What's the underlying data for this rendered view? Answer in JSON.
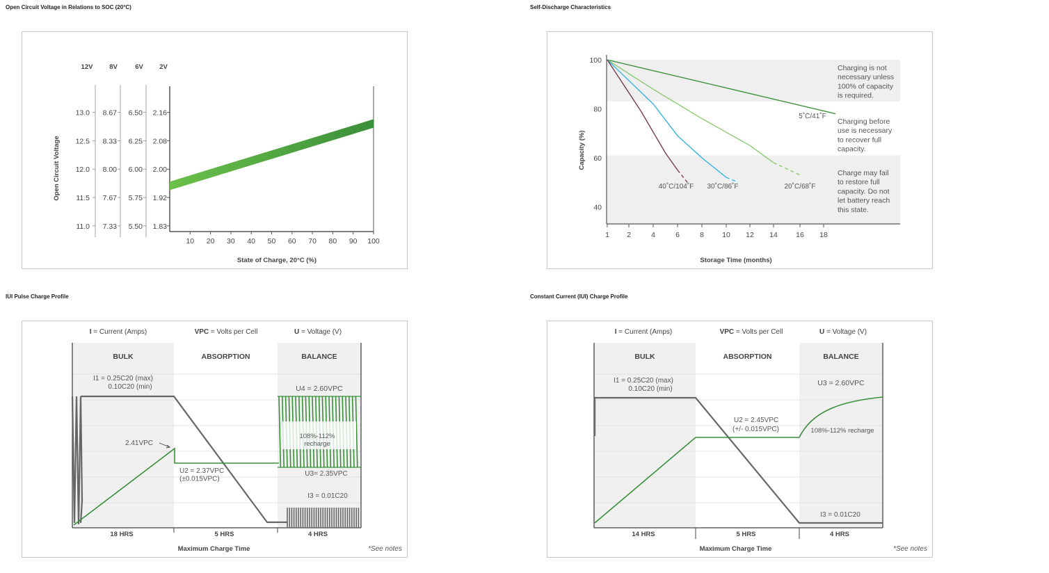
{
  "captions": {
    "ocv": "Open Circuit Voltage in Relations to SOC (20°C)",
    "sd": "Self-Discharge Characteristics",
    "iui": "IUI Pulse Charge Profile",
    "cc": "Constant Current (IUI) Charge Profile"
  },
  "colors": {
    "green_dark": "#3a8f3a",
    "green_light": "#6cc04a",
    "gray_line": "#666666",
    "shade": "#efefef"
  },
  "chart_data": [
    {
      "type": "area",
      "title": "",
      "ylabel": "Open Circuit Voltage",
      "xlabel": "State of Charge, 20°C (%)",
      "x_ticks": [
        "10",
        "20",
        "30",
        "40",
        "50",
        "60",
        "70",
        "80",
        "90",
        "100"
      ],
      "xlim": [
        0,
        100
      ],
      "ylim": [
        10.9,
        13.4
      ],
      "voltage_columns": [
        {
          "header": "12V",
          "ticks": [
            "13.0",
            "12.5",
            "12.0",
            "11.5",
            "11.0"
          ]
        },
        {
          "header": "8V",
          "ticks": [
            "8.67",
            "8.33",
            "8.00",
            "7.67",
            "7.33"
          ]
        },
        {
          "header": "6V",
          "ticks": [
            "6.50",
            "6.25",
            "6.00",
            "5.75",
            "5.50"
          ]
        },
        {
          "header": "2V",
          "ticks": [
            "2.16",
            "2.08",
            "2.00",
            "1.92",
            "1.83"
          ]
        }
      ],
      "tick_values_12v": [
        13.0,
        12.5,
        12.0,
        11.5,
        11.0
      ],
      "band": {
        "x": [
          0,
          100
        ],
        "lower": [
          11.63,
          12.73
        ],
        "upper": [
          11.78,
          12.88
        ]
      }
    },
    {
      "type": "line",
      "title": "",
      "ylabel": "Capacity (%)",
      "xlabel": "Storage Time (months)",
      "x_ticks": [
        "1",
        "2",
        "4",
        "6",
        "8",
        "10",
        "12",
        "14",
        "16",
        "18"
      ],
      "y_ticks": [
        "100",
        "80",
        "60",
        "40"
      ],
      "y_tick_values": [
        100,
        80,
        60,
        40
      ],
      "ylim": [
        33,
        102
      ],
      "zones": [
        {
          "from": 100,
          "to": 83,
          "text": [
            "Charging is not",
            "necessary unless",
            "100% of capacity",
            "is required."
          ]
        },
        {
          "from": 83,
          "to": 61,
          "text": [
            "Charging before",
            "use is necessary",
            "to recover full",
            "capacity."
          ]
        },
        {
          "from": 61,
          "to": 33,
          "text": [
            "Charge may fail",
            "to restore full",
            "capacity. Do not",
            "let battery reach",
            "this state."
          ]
        }
      ],
      "series": [
        {
          "name": "5˚C/41˚F",
          "color": "#3a8f3a",
          "x": [
            1,
            19
          ],
          "y": [
            100,
            78
          ]
        },
        {
          "name": "20˚C/68˚F",
          "color": "#8cc870",
          "x": [
            1,
            4,
            8,
            12,
            14,
            16
          ],
          "y": [
            100,
            88,
            76,
            65,
            58,
            53
          ]
        },
        {
          "name": "30˚C/86˚F",
          "color": "#3ab4e0",
          "x": [
            1,
            4,
            6,
            8,
            10,
            11
          ],
          "y": [
            100,
            82,
            69,
            60,
            52,
            50
          ]
        },
        {
          "name": "40˚C/104˚F",
          "color": "#7a3b4a",
          "x": [
            1,
            3,
            5,
            6,
            6.8
          ],
          "y": [
            100,
            79,
            62,
            55,
            50
          ]
        }
      ]
    },
    {
      "type": "line",
      "title": "",
      "header": [
        {
          "bold": "I",
          "rest": " = Current (Amps)"
        },
        {
          "bold": "VPC",
          "rest": " = Volts per Cell"
        },
        {
          "bold": "U",
          "rest": " = Voltage (V)"
        }
      ],
      "phases": [
        "BULK",
        "ABSORPTION",
        "BALANCE"
      ],
      "durations": [
        "18 HRS",
        "5 HRS",
        "4 HRS"
      ],
      "xlabel": "Maximum Charge Time",
      "note": "*See notes",
      "annotations": {
        "i1": [
          "I1 = 0.25C20 (max)",
          "0.10C20 (min)"
        ],
        "v241": "2.41VPC",
        "u2": [
          "U2 = 2.37VPC",
          "(±0.015VPC)"
        ],
        "u4": "U4 = 2.60VPC",
        "recharge": [
          "108%-112%",
          "recharge"
        ],
        "u3": "U3= 2.35VPC",
        "i3": "I3 = 0.01C20"
      }
    },
    {
      "type": "line",
      "title": "",
      "header": [
        {
          "bold": "I",
          "rest": " = Current (Amps)"
        },
        {
          "bold": "VPC",
          "rest": " = Volts per Cell"
        },
        {
          "bold": "U",
          "rest": " = Voltage (V)"
        }
      ],
      "phases": [
        "BULK",
        "ABSORPTION",
        "BALANCE"
      ],
      "durations": [
        "14 HRS",
        "5 HRS",
        "4 HRS"
      ],
      "xlabel": "Maximum Charge Time",
      "note": "*See notes",
      "annotations": {
        "i1": [
          "I1 = 0.25C20 (max)",
          "0.10C20 (min)"
        ],
        "u2": [
          "U2 = 2.45VPC",
          "(+/- 0.015VPC)"
        ],
        "u3": "U3 = 2.60VPC",
        "recharge": "108%-112% recharge",
        "i3": "I3 = 0.01C20"
      }
    }
  ]
}
